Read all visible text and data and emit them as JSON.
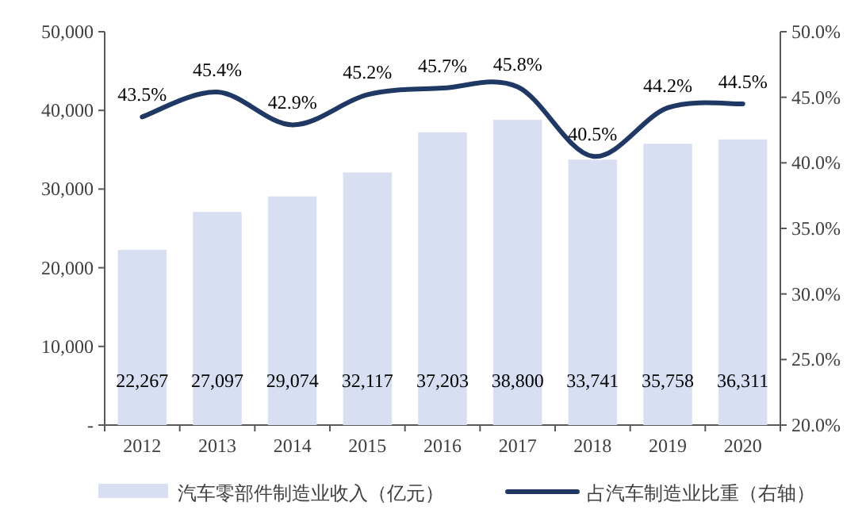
{
  "chart_data": {
    "type": "bar",
    "categories": [
      "2012",
      "2013",
      "2014",
      "2015",
      "2016",
      "2017",
      "2018",
      "2019",
      "2020"
    ],
    "series": [
      {
        "name": "汽车零部件制造业收入（亿元）",
        "color": "#d9dff2",
        "values": [
          22267,
          27097,
          29074,
          32117,
          37203,
          38800,
          33741,
          35758,
          36311
        ],
        "value_labels": [
          "22,267",
          "27,097",
          "29,074",
          "32,117",
          "37,203",
          "38,800",
          "33,741",
          "35,758",
          "36,311"
        ]
      },
      {
        "name": "占汽车制造业比重（右轴）",
        "type": "line",
        "axis": "y2",
        "color": "#1f3864",
        "values": [
          43.5,
          45.4,
          42.9,
          45.2,
          45.7,
          45.8,
          40.5,
          44.2,
          44.5
        ],
        "value_labels": [
          "43.5%",
          "45.4%",
          "42.9%",
          "45.2%",
          "45.7%",
          "45.8%",
          "40.5%",
          "44.2%",
          "44.5%"
        ]
      }
    ],
    "ylim": [
      0,
      50000
    ],
    "yticks": [
      {
        "value": 0,
        "label": "-"
      },
      {
        "value": 10000,
        "label": "10,000"
      },
      {
        "value": 20000,
        "label": "20,000"
      },
      {
        "value": 30000,
        "label": "30,000"
      },
      {
        "value": 40000,
        "label": "40,000"
      },
      {
        "value": 50000,
        "label": "50,000"
      }
    ],
    "y2lim": [
      20,
      50
    ],
    "y2ticks": [
      {
        "value": 20,
        "label": "20.0%"
      },
      {
        "value": 25,
        "label": "25.0%"
      },
      {
        "value": 30,
        "label": "30.0%"
      },
      {
        "value": 35,
        "label": "35.0%"
      },
      {
        "value": 40,
        "label": "40.0%"
      },
      {
        "value": 45,
        "label": "45.0%"
      },
      {
        "value": 50,
        "label": "50.0%"
      }
    ],
    "legend": "bottom",
    "marker": "none"
  }
}
